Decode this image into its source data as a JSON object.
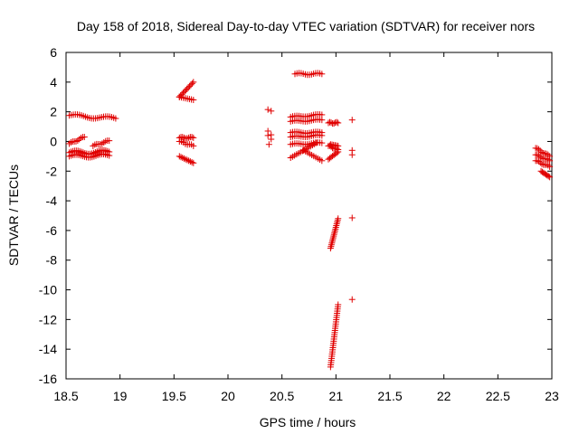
{
  "chart_data": {
    "type": "scatter",
    "title": "Day 158 of 2018, Sidereal Day-to-day VTEC variation (SDTVAR) for receiver nors",
    "xlabel": "GPS time / hours",
    "ylabel": "SDTVAR / TECUs",
    "xlim": [
      18.5,
      23
    ],
    "ylim": [
      -16,
      6
    ],
    "xticks": [
      18.5,
      19,
      19.5,
      20,
      20.5,
      21,
      21.5,
      22,
      22.5,
      23
    ],
    "xtick_labels": [
      "18.5",
      "19",
      "19.5",
      "20",
      "20.5",
      "21",
      "21.5",
      "22",
      "22.5",
      "23"
    ],
    "yticks": [
      6,
      4,
      2,
      0,
      -2,
      -4,
      -6,
      -8,
      -10,
      -12,
      -14,
      -16
    ],
    "ytick_labels": [
      "6",
      "4",
      "2",
      "0",
      "-2",
      "-4",
      "-6",
      "-8",
      "-10",
      "-12",
      "-14",
      "-16"
    ],
    "marker": "+",
    "marker_color": "#e00000",
    "grid": false,
    "series": [
      {
        "name": "SDTVAR",
        "segments": [
          {
            "x": [
              18.53,
              18.96
            ],
            "y": [
              1.75,
              1.55
            ],
            "n": 24,
            "wave": 0.1
          },
          {
            "x": [
              18.53,
              18.67
            ],
            "y": [
              -0.15,
              0.3
            ],
            "n": 10,
            "wave": 0.05
          },
          {
            "x": [
              18.75,
              18.9
            ],
            "y": [
              -0.3,
              0.05
            ],
            "n": 10,
            "wave": 0.05
          },
          {
            "x": [
              18.53,
              18.9
            ],
            "y": [
              -0.75,
              -0.7
            ],
            "n": 24,
            "wave": 0.12
          },
          {
            "x": [
              18.53,
              18.9
            ],
            "y": [
              -1.0,
              -0.95
            ],
            "n": 22,
            "wave": 0.1
          },
          {
            "x": [
              19.55,
              19.68
            ],
            "y": [
              3.0,
              4.0
            ],
            "n": 12,
            "wave": 0
          },
          {
            "x": [
              19.55,
              19.68
            ],
            "y": [
              3.0,
              2.8
            ],
            "n": 8,
            "wave": 0
          },
          {
            "x": [
              19.55,
              19.68
            ],
            "y": [
              0.25,
              0.25
            ],
            "n": 10,
            "wave": 0.05
          },
          {
            "x": [
              19.55,
              19.68
            ],
            "y": [
              0.0,
              -0.3
            ],
            "n": 8,
            "wave": 0.05
          },
          {
            "x": [
              19.55,
              19.68
            ],
            "y": [
              -1.0,
              -1.45
            ],
            "n": 10,
            "wave": 0
          },
          {
            "x": [
              20.37,
              20.37
            ],
            "y": [
              2.15,
              2.15
            ],
            "n": 1,
            "wave": 0
          },
          {
            "x": [
              20.4,
              20.4
            ],
            "y": [
              2.05,
              2.05
            ],
            "n": 1,
            "wave": 0
          },
          {
            "x": [
              20.37,
              20.37
            ],
            "y": [
              0.7,
              0.7
            ],
            "n": 1,
            "wave": 0
          },
          {
            "x": [
              20.37,
              20.37
            ],
            "y": [
              0.4,
              0.4
            ],
            "n": 1,
            "wave": 0
          },
          {
            "x": [
              20.38,
              20.38
            ],
            "y": [
              -0.2,
              -0.2
            ],
            "n": 1,
            "wave": 0
          },
          {
            "x": [
              20.4,
              20.4
            ],
            "y": [
              0.45,
              0.45
            ],
            "n": 1,
            "wave": 0
          },
          {
            "x": [
              20.4,
              20.4
            ],
            "y": [
              0.15,
              0.15
            ],
            "n": 1,
            "wave": 0
          },
          {
            "x": [
              20.62,
              20.87
            ],
            "y": [
              4.55,
              4.55
            ],
            "n": 14,
            "wave": 0.06
          },
          {
            "x": [
              20.58,
              20.87
            ],
            "y": [
              1.65,
              1.8
            ],
            "n": 16,
            "wave": 0.05
          },
          {
            "x": [
              20.58,
              20.87
            ],
            "y": [
              1.35,
              1.45
            ],
            "n": 16,
            "wave": 0.05
          },
          {
            "x": [
              20.58,
              20.87
            ],
            "y": [
              0.6,
              0.6
            ],
            "n": 16,
            "wave": 0.05
          },
          {
            "x": [
              20.58,
              20.87
            ],
            "y": [
              0.3,
              0.4
            ],
            "n": 16,
            "wave": 0.05
          },
          {
            "x": [
              20.58,
              20.87
            ],
            "y": [
              -0.2,
              -0.1
            ],
            "n": 16,
            "wave": 0.05
          },
          {
            "x": [
              20.58,
              20.82
            ],
            "y": [
              -1.1,
              -0.1
            ],
            "n": 14,
            "wave": 0
          },
          {
            "x": [
              20.7,
              20.87
            ],
            "y": [
              -0.6,
              -1.3
            ],
            "n": 10,
            "wave": 0
          },
          {
            "x": [
              20.93,
              21.02
            ],
            "y": [
              1.25,
              1.25
            ],
            "n": 8,
            "wave": 0.05
          },
          {
            "x": [
              20.93,
              21.02
            ],
            "y": [
              -0.3,
              -0.55
            ],
            "n": 8,
            "wave": 0.05
          },
          {
            "x": [
              20.93,
              21.02
            ],
            "y": [
              -1.2,
              -0.7
            ],
            "n": 8,
            "wave": 0
          },
          {
            "x": [
              20.95,
              21.02
            ],
            "y": [
              -0.2,
              -0.3
            ],
            "n": 6,
            "wave": 0
          },
          {
            "x": [
              20.95,
              21.02
            ],
            "y": [
              -7.2,
              -5.2
            ],
            "n": 18,
            "wave": 0
          },
          {
            "x": [
              20.95,
              21.02
            ],
            "y": [
              -15.2,
              -11.0
            ],
            "n": 30,
            "wave": 0
          },
          {
            "x": [
              21.15,
              21.15
            ],
            "y": [
              1.45,
              1.45
            ],
            "n": 1,
            "wave": 0
          },
          {
            "x": [
              21.15,
              21.15
            ],
            "y": [
              -0.6,
              -0.6
            ],
            "n": 1,
            "wave": 0
          },
          {
            "x": [
              21.15,
              21.15
            ],
            "y": [
              -0.9,
              -0.9
            ],
            "n": 1,
            "wave": 0
          },
          {
            "x": [
              21.15,
              21.15
            ],
            "y": [
              -5.15,
              -5.15
            ],
            "n": 1,
            "wave": 0
          },
          {
            "x": [
              21.15,
              21.15
            ],
            "y": [
              -10.65,
              -10.65
            ],
            "n": 1,
            "wave": 0
          },
          {
            "x": [
              22.85,
              22.98
            ],
            "y": [
              -0.45,
              -1.0
            ],
            "n": 10,
            "wave": 0.05
          },
          {
            "x": [
              22.85,
              22.98
            ],
            "y": [
              -0.9,
              -1.3
            ],
            "n": 10,
            "wave": 0.05
          },
          {
            "x": [
              22.85,
              22.98
            ],
            "y": [
              -1.3,
              -1.7
            ],
            "n": 10,
            "wave": 0.05
          },
          {
            "x": [
              22.9,
              22.98
            ],
            "y": [
              -2.0,
              -2.4
            ],
            "n": 8,
            "wave": 0
          }
        ]
      }
    ]
  }
}
